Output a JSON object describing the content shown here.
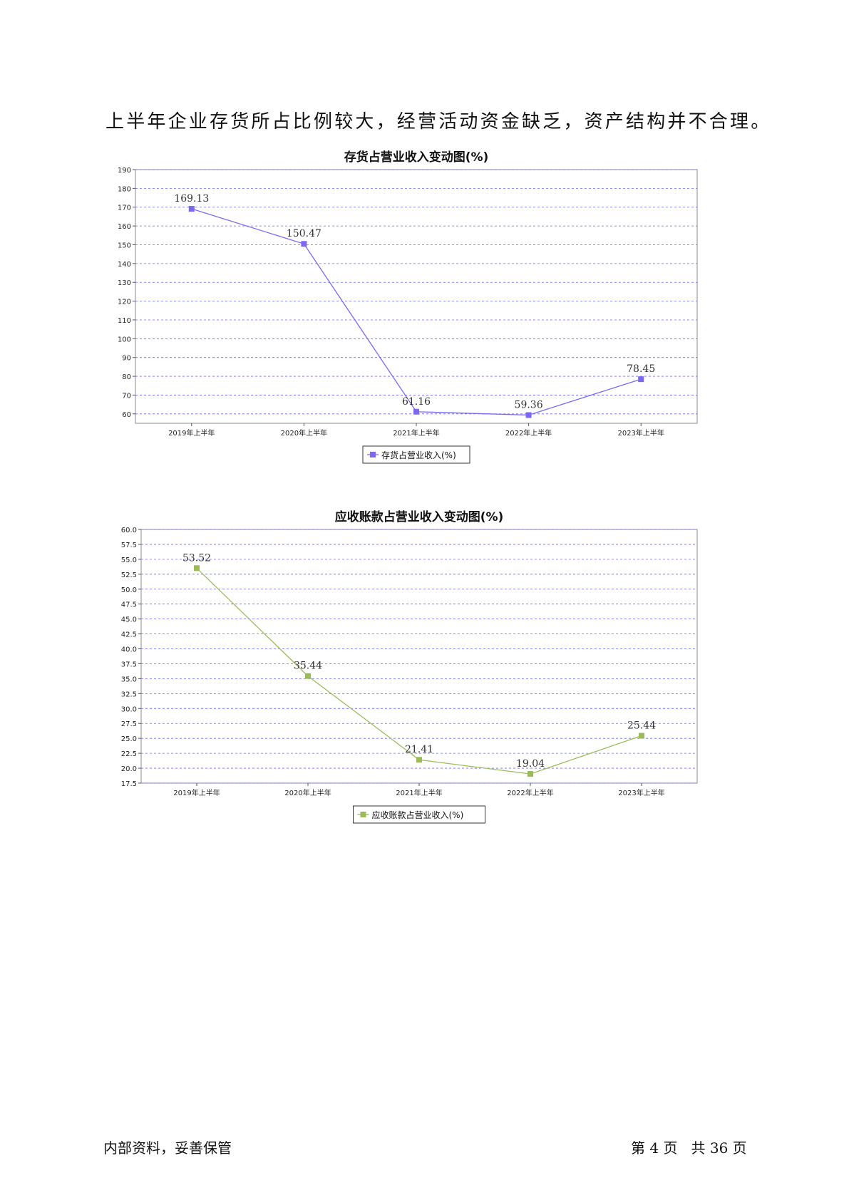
{
  "paragraph": "上半年企业存货所占比例较大，经营活动资金缺乏，资产结构并不合理。",
  "chart_data": [
    {
      "type": "line",
      "title": "存货占营业收入变动图(%)",
      "categories": [
        "2019年上半年",
        "2020年上半年",
        "2021年上半年",
        "2022年上半年",
        "2023年上半年"
      ],
      "series": [
        {
          "name": "存货占营业收入(%)",
          "values": [
            169.13,
            150.47,
            61.16,
            59.36,
            78.45
          ],
          "labels": [
            "169.13",
            "150.47",
            "61.16",
            "59.36",
            "78.45"
          ]
        }
      ],
      "ylim": [
        55,
        190
      ],
      "yticks": [
        60,
        70,
        80,
        90,
        100,
        110,
        120,
        130,
        140,
        150,
        160,
        170,
        180,
        190
      ],
      "ytick_labels": [
        "60",
        "70",
        "80",
        "90",
        "100",
        "110",
        "120",
        "130",
        "140",
        "150",
        "160",
        "170",
        "180",
        "190"
      ],
      "color": "#7b68ee",
      "grid": true,
      "legend_position": "bottom-center"
    },
    {
      "type": "line",
      "title": "应收账款占营业收入变动图(%)",
      "categories": [
        "2019年上半年",
        "2020年上半年",
        "2021年上半年",
        "2022年上半年",
        "2023年上半年"
      ],
      "series": [
        {
          "name": "应收账款占营业收入(%)",
          "values": [
            53.52,
            35.44,
            21.41,
            19.04,
            25.44
          ],
          "labels": [
            "53.52",
            "35.44",
            "21.41",
            "19.04",
            "25.44"
          ]
        }
      ],
      "ylim": [
        17.5,
        60.0
      ],
      "yticks": [
        17.5,
        20.0,
        22.5,
        25.0,
        27.5,
        30.0,
        32.5,
        35.0,
        37.5,
        40.0,
        42.5,
        45.0,
        47.5,
        50.0,
        52.5,
        55.0,
        57.5,
        60.0
      ],
      "ytick_labels": [
        "17.5",
        "20.0",
        "22.5",
        "25.0",
        "27.5",
        "30.0",
        "32.5",
        "35.0",
        "37.5",
        "40.0",
        "42.5",
        "45.0",
        "47.5",
        "50.0",
        "52.5",
        "55.0",
        "57.5",
        "60.0"
      ],
      "color": "#9bbb59",
      "grid": true,
      "legend_position": "bottom-center"
    }
  ],
  "footer": {
    "left": "内部资料，妥善保管",
    "right": "第 4 页   共 36 页"
  }
}
